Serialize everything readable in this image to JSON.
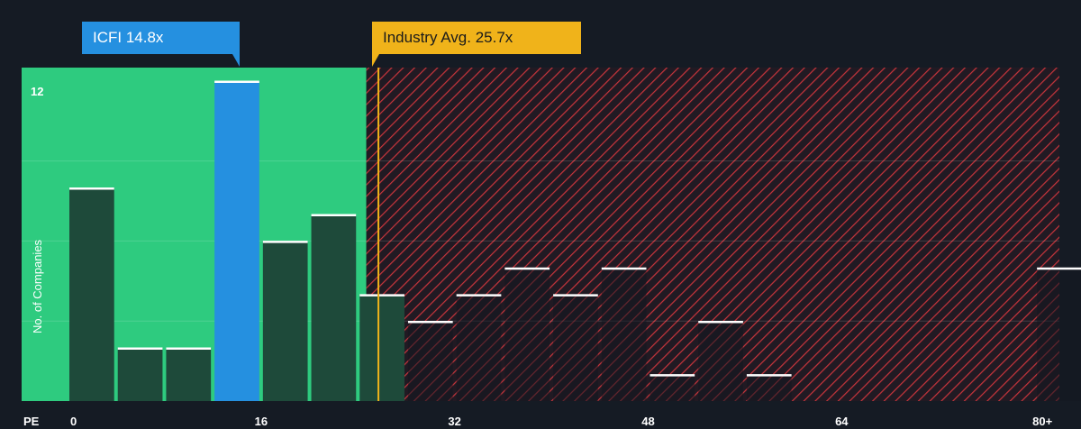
{
  "chart_data": {
    "type": "bar",
    "x_axis_label": "PE",
    "y_axis_label": "No. of Companies",
    "y_tick_shown": "12",
    "ylim": [
      0,
      12.5
    ],
    "xlim": [
      -3.8,
      82
    ],
    "x_ticks": [
      {
        "value": 0,
        "label": "0"
      },
      {
        "value": 16,
        "label": "16"
      },
      {
        "value": 32,
        "label": "32"
      },
      {
        "value": 48,
        "label": "48"
      },
      {
        "value": 64,
        "label": "64"
      },
      {
        "value": 80,
        "label": "80+"
      }
    ],
    "bins": [
      {
        "x0": 0,
        "x1": 4,
        "count": 8
      },
      {
        "x0": 4,
        "x1": 8,
        "count": 2
      },
      {
        "x0": 8,
        "x1": 12,
        "count": 2
      },
      {
        "x0": 12,
        "x1": 16,
        "count": 12,
        "highlight": true
      },
      {
        "x0": 16,
        "x1": 20,
        "count": 6
      },
      {
        "x0": 20,
        "x1": 24,
        "count": 7
      },
      {
        "x0": 24,
        "x1": 28,
        "count": 4
      },
      {
        "x0": 28,
        "x1": 32,
        "count": 3
      },
      {
        "x0": 32,
        "x1": 36,
        "count": 4
      },
      {
        "x0": 36,
        "x1": 40,
        "count": 5
      },
      {
        "x0": 40,
        "x1": 44,
        "count": 4
      },
      {
        "x0": 44,
        "x1": 48,
        "count": 5
      },
      {
        "x0": 48,
        "x1": 52,
        "count": 1
      },
      {
        "x0": 52,
        "x1": 56,
        "count": 3
      },
      {
        "x0": 56,
        "x1": 60,
        "count": 1
      },
      {
        "x0": 80,
        "x1": 84,
        "count": 5
      }
    ],
    "company": {
      "ticker": "ICFI",
      "pe": 14.8,
      "label": "ICFI 14.8x"
    },
    "industry_avg": {
      "pe": 25.7,
      "label": "Industry Avg. 25.7x"
    },
    "favorable_zone_end_pe": 24.7,
    "colors": {
      "background": "#151b24",
      "favorable_zone": "#2ecb7f",
      "bar_fill": "#1e4a3a",
      "highlight_bar": "#2590e0",
      "unfavorable_hatch": "#c9353c",
      "industry_line": "#f0b31a",
      "bar_cap": "#ffffff"
    },
    "grid": true
  }
}
